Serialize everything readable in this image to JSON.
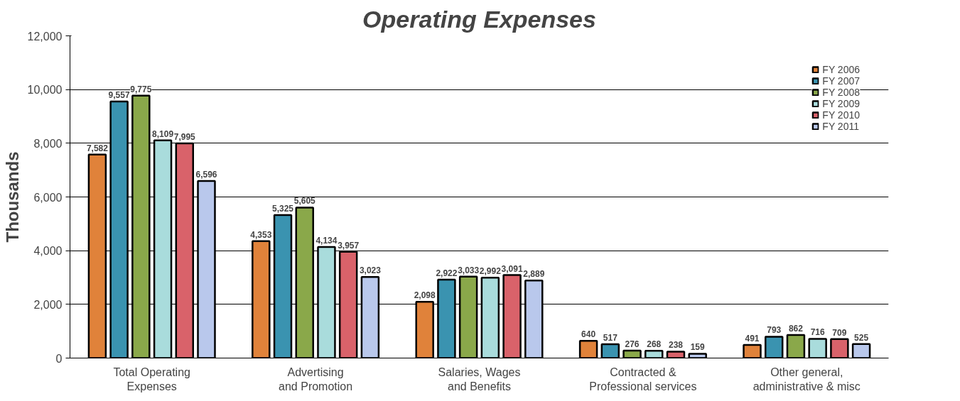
{
  "chart_data": {
    "type": "bar",
    "title": "Operating Expenses",
    "ylabel": "Thousands",
    "categories": [
      "Total Operating Expenses",
      "Advertising and Promotion",
      "Salaries, Wages and Benefits",
      "Contracted & Professional services",
      "Other general, administrative & misc"
    ],
    "series": [
      {
        "name": "FY 2006",
        "color": "#e0823a",
        "values": [
          7582,
          4353,
          2098,
          640,
          491
        ],
        "value_labels": [
          "7,582",
          "4,353",
          "2,098",
          "640",
          "491"
        ]
      },
      {
        "name": "FY 2007",
        "color": "#3a93b0",
        "values": [
          9557,
          5325,
          2922,
          517,
          793
        ],
        "value_labels": [
          "9,557",
          "5,325",
          "2,922",
          "517",
          "793"
        ]
      },
      {
        "name": "FY 2008",
        "color": "#8aa84a",
        "values": [
          9775,
          5605,
          3033,
          276,
          862
        ],
        "value_labels": [
          "9,775",
          "5,605",
          "3,033",
          "276",
          "862"
        ]
      },
      {
        "name": "FY 2009",
        "color": "#a9dcdc",
        "values": [
          8109,
          4134,
          2992,
          268,
          716
        ],
        "value_labels": [
          "8,109",
          "4,134",
          "2,992",
          "268",
          "716"
        ]
      },
      {
        "name": "FY 2010",
        "color": "#d9626a",
        "values": [
          7995,
          3957,
          3091,
          238,
          709
        ],
        "value_labels": [
          "7,995",
          "3,957",
          "3,091",
          "238",
          "709"
        ]
      },
      {
        "name": "FY 2011",
        "color": "#b9c8ec",
        "values": [
          6596,
          3023,
          2889,
          159,
          525
        ],
        "value_labels": [
          "6,596",
          "3,023",
          "2,889",
          "159",
          "525"
        ]
      }
    ],
    "ylim": [
      0,
      12000
    ],
    "yticks": [
      {
        "value": 0,
        "label": "0"
      },
      {
        "value": 2000,
        "label": "2,000"
      },
      {
        "value": 4000,
        "label": "4,000"
      },
      {
        "value": 6000,
        "label": "6,000"
      },
      {
        "value": 8000,
        "label": "8,000"
      },
      {
        "value": 10000,
        "label": "10,000"
      },
      {
        "value": 12000,
        "label": "12,000"
      }
    ],
    "grid": "y",
    "legend": "top right"
  }
}
